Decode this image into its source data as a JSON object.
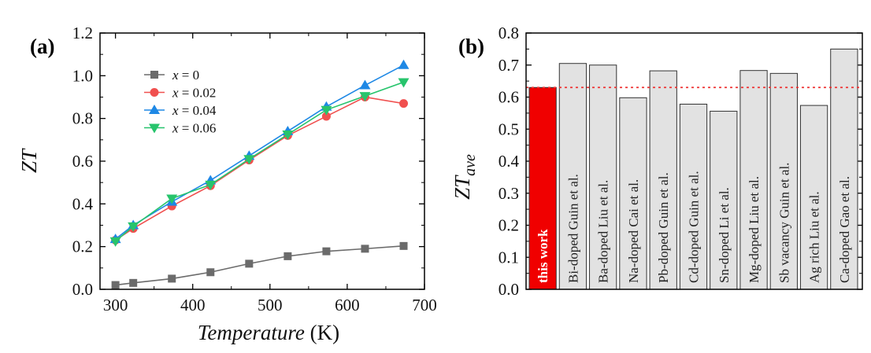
{
  "chart_data": [
    {
      "panel": "(a)",
      "type": "line",
      "xlabel": "Temperature",
      "xlabel_unit": "(K)",
      "ylabel": "ZT",
      "xlim": [
        280,
        700
      ],
      "ylim": [
        0,
        1.2
      ],
      "xticks": [
        "300",
        "400",
        "500",
        "600",
        "700"
      ],
      "yticks": [
        "0.0",
        "0.2",
        "0.4",
        "0.6",
        "0.8",
        "1.0",
        "1.2"
      ],
      "legend_position": "top-left",
      "x": [
        300,
        323,
        373,
        423,
        473,
        523,
        573,
        623,
        673
      ],
      "series": [
        {
          "name": "x = 0",
          "var": "x",
          "eq": " = 0",
          "color": "#6b6b6b",
          "marker": "square",
          "values": [
            0.02,
            0.03,
            0.05,
            0.08,
            0.12,
            0.155,
            0.178,
            0.19,
            0.203
          ]
        },
        {
          "name": "x = 0.02",
          "var": "x",
          "eq": " = 0.02",
          "color": "#f0504f",
          "marker": "circle",
          "values": [
            0.23,
            0.285,
            0.39,
            0.485,
            0.605,
            0.72,
            0.81,
            0.9,
            0.87
          ]
        },
        {
          "name": "x = 0.04",
          "var": "x",
          "eq": " = 0.04",
          "color": "#1e88e5",
          "marker": "triangle-up",
          "values": [
            0.235,
            0.3,
            0.41,
            0.51,
            0.625,
            0.74,
            0.855,
            0.955,
            1.05
          ]
        },
        {
          "name": "x = 0.06",
          "var": "x",
          "eq": " = 0.06",
          "color": "#27c46c",
          "marker": "triangle-down",
          "values": [
            0.225,
            0.295,
            0.425,
            0.49,
            0.61,
            0.725,
            0.84,
            0.905,
            0.97
          ]
        }
      ]
    },
    {
      "panel": "(b)",
      "type": "bar",
      "ylabel": "ZT",
      "ylabel_sub": "ave",
      "ylim": [
        0,
        0.8
      ],
      "yticks": [
        "0.0",
        "0.1",
        "0.2",
        "0.3",
        "0.4",
        "0.5",
        "0.6",
        "0.7",
        "0.8"
      ],
      "reference_line": 0.63,
      "reference_color": "#e33",
      "categories": [
        "this work",
        "Bi-doped Guin et al.",
        "Ba-doped Liu et al.",
        "Na-doped Cai et al.",
        "Pb-doped Guin et al.",
        "Cd-doped Guin et al.",
        "Sn-doped Li et al.",
        "Mg-doped Liu et al.",
        "Sb vacancy Guin et al.",
        "Ag rich Liu et al.",
        "Ca-doped Gao et al."
      ],
      "values": [
        0.63,
        0.705,
        0.7,
        0.598,
        0.682,
        0.578,
        0.556,
        0.683,
        0.674,
        0.574,
        0.75
      ],
      "highlight_index": 0,
      "colors": {
        "highlight": "#f00000",
        "bar": "#e2e2e2"
      }
    }
  ]
}
